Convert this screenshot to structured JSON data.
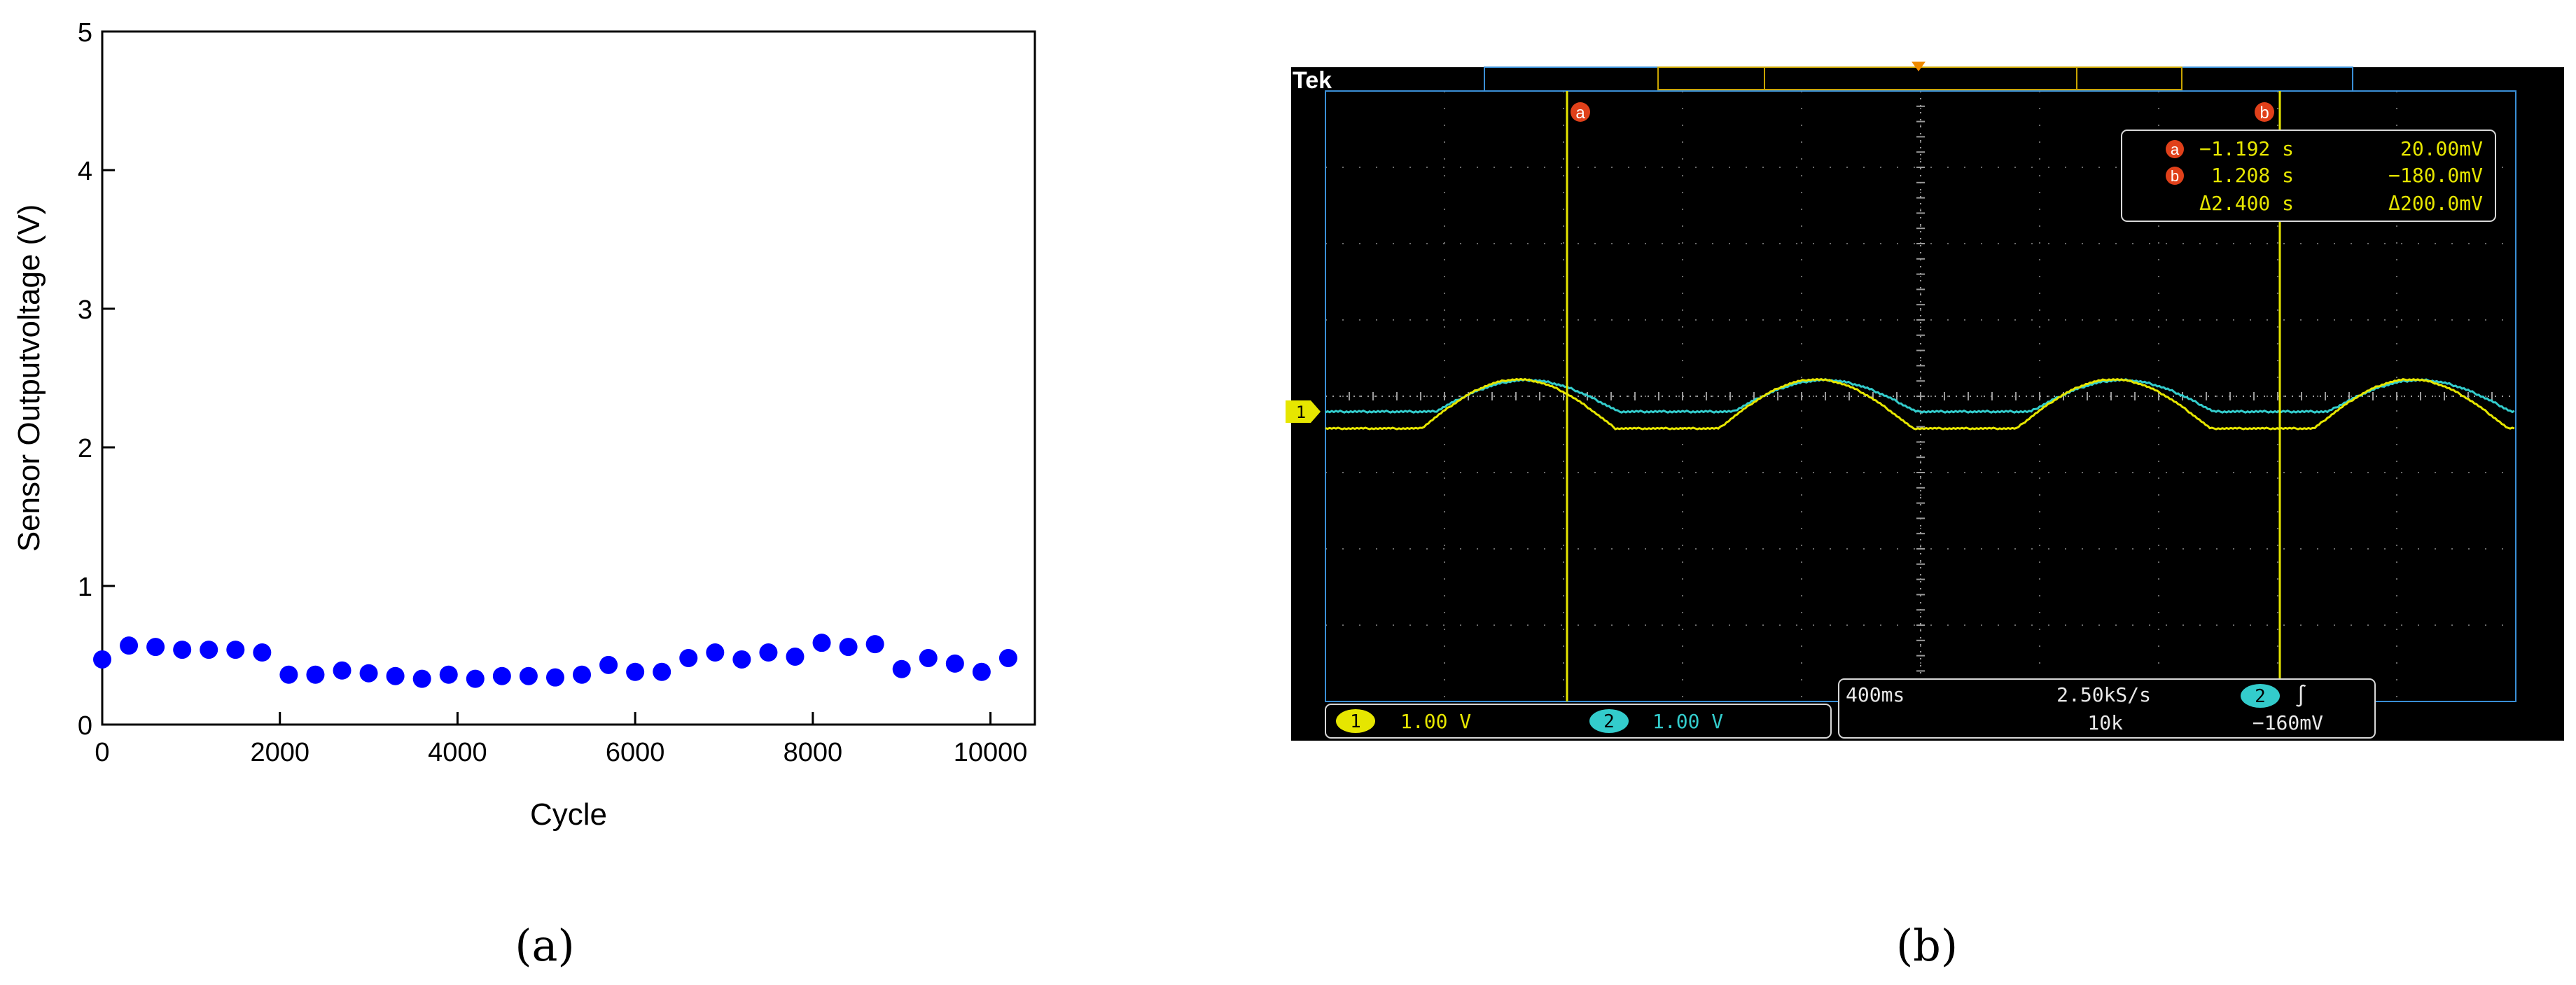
{
  "panel_labels": {
    "a": "(a)",
    "b": "(b)"
  },
  "chart_data": [
    {
      "type": "scatter",
      "xlabel": "Cycle",
      "ylabel": "Sensor Outputvoltage (V)",
      "xlim": [
        0,
        10500
      ],
      "ylim": [
        0,
        5
      ],
      "x_ticks": [
        "0",
        "2000",
        "4000",
        "6000",
        "8000",
        "10000"
      ],
      "y_ticks": [
        "0",
        "1",
        "2",
        "3",
        "4",
        "5"
      ],
      "grid": false,
      "marker_color": "#0000ff",
      "series": [
        {
          "x": [
            0,
            300,
            600,
            900,
            1200,
            1500,
            1800,
            2100,
            2400,
            2700,
            3000,
            3300,
            3600,
            3900,
            4200,
            4500,
            4800,
            5100,
            5400,
            5700,
            6000,
            6300,
            6600,
            6900,
            7200,
            7500,
            7800,
            8100,
            8400,
            8700,
            9000,
            9300,
            9600,
            9900,
            10200
          ],
          "y": [
            0.47,
            0.57,
            0.56,
            0.54,
            0.54,
            0.54,
            0.52,
            0.36,
            0.36,
            0.39,
            0.37,
            0.35,
            0.33,
            0.36,
            0.33,
            0.35,
            0.35,
            0.34,
            0.36,
            0.43,
            0.38,
            0.38,
            0.48,
            0.52,
            0.47,
            0.52,
            0.49,
            0.59,
            0.56,
            0.58,
            0.4,
            0.48,
            0.44,
            0.38,
            0.48
          ]
        }
      ]
    },
    {
      "type": "line",
      "brand": "Tek",
      "channel_marker": "1",
      "cursor_a": {
        "label": "a",
        "time": "−1.192 s",
        "volt": "20.00mV"
      },
      "cursor_b": {
        "label": "b",
        "time": "1.208 s",
        "volt": "−180.0mV"
      },
      "delta": {
        "time": "Δ2.400 s",
        "volt": "Δ200.0mV"
      },
      "ch1": {
        "label": "1",
        "scale": "1.00 V",
        "color": "#e6e600"
      },
      "ch2": {
        "label": "2",
        "scale": "1.00 V",
        "color": "#33cccc"
      },
      "timebase": "400ms",
      "sample_rate": "2.50kS/s",
      "record_length": "10k",
      "trigger": {
        "source": "2",
        "slope": "∫",
        "level": "−160mV"
      },
      "series": [
        {
          "name": "1",
          "color": "#e6e600"
        },
        {
          "name": "2",
          "color": "#33cccc"
        }
      ]
    }
  ]
}
